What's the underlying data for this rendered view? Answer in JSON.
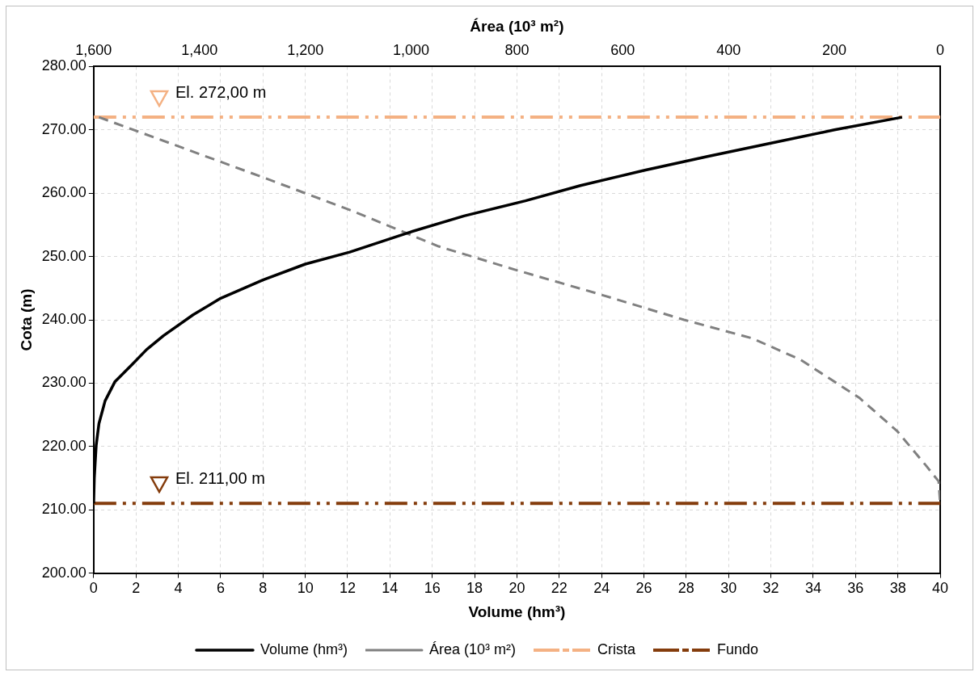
{
  "chart_data": {
    "type": "line",
    "xlabel": "Volume (hm³)",
    "x2label": "Área (10³ m²)",
    "ylabel": "Cota (m)",
    "xlim": [
      0,
      40
    ],
    "xticks": [
      0,
      2,
      4,
      6,
      8,
      10,
      12,
      14,
      16,
      18,
      20,
      22,
      24,
      26,
      28,
      30,
      32,
      34,
      36,
      38,
      40
    ],
    "x2lim": [
      1600,
      0
    ],
    "x2ticks": [
      {
        "value": 1600,
        "label": "1,600"
      },
      {
        "value": 1400,
        "label": "1,400"
      },
      {
        "value": 1200,
        "label": "1,200"
      },
      {
        "value": 1000,
        "label": "1,000"
      },
      800,
      600,
      400,
      200,
      0
    ],
    "ylim": [
      200,
      280
    ],
    "yticks": [
      {
        "value": 200,
        "label": "200.00"
      },
      {
        "value": 210,
        "label": "210.00"
      },
      {
        "value": 220,
        "label": "220.00"
      },
      {
        "value": 230,
        "label": "230.00"
      },
      {
        "value": 240,
        "label": "240.00"
      },
      {
        "value": 250,
        "label": "250.00"
      },
      {
        "value": 260,
        "label": "260.00"
      },
      {
        "value": 270,
        "label": "270.00"
      },
      {
        "value": 280,
        "label": "280.00"
      }
    ],
    "grid": true,
    "legend": "bottom",
    "series": [
      {
        "name": "Volume (hm³)",
        "color": "#000000",
        "line_style": "solid",
        "x": [
          0,
          0.03,
          0.12,
          0.25,
          0.54,
          1,
          1.8,
          2.5,
          3.3,
          4.7,
          6,
          8,
          10,
          12.1,
          14.9,
          17.5,
          20.4,
          23,
          26,
          29,
          32,
          35,
          38.2
        ],
        "values": [
          211,
          215,
          220.2,
          223.6,
          227.2,
          230.2,
          232.9,
          235.3,
          237.5,
          240.8,
          243.4,
          246.3,
          248.8,
          250.7,
          253.8,
          256.4,
          258.8,
          261.2,
          263.6,
          265.8,
          267.9,
          270,
          272
        ]
      },
      {
        "name": "Área (10³ m²)",
        "color": "#808080",
        "line_style": "dashed",
        "axis": "x2",
        "x": [
          1590,
          1446,
          1280,
          1114,
          948,
          799,
          650,
          484,
          356,
          264,
          153,
          81,
          25,
          3,
          0
        ],
        "values": [
          272,
          267.6,
          262.5,
          257.3,
          251.6,
          247.8,
          244.2,
          240,
          237.1,
          233.7,
          227.7,
          222.4,
          216.8,
          214.5,
          211
        ]
      }
    ],
    "ref_lines": [
      {
        "axis": "y",
        "value": 272,
        "label": "Crista",
        "color": "#f4b183",
        "line_style": "dashed"
      },
      {
        "axis": "y",
        "value": 211,
        "label": "Fundo",
        "color": "#843c0c",
        "line_style": "dashed"
      }
    ],
    "annotations": [
      {
        "text": "El. 272,00 m",
        "x": 3.1,
        "y": 272
      },
      {
        "text": "El. 211,00 m",
        "x": 3.1,
        "y": 211
      }
    ]
  }
}
